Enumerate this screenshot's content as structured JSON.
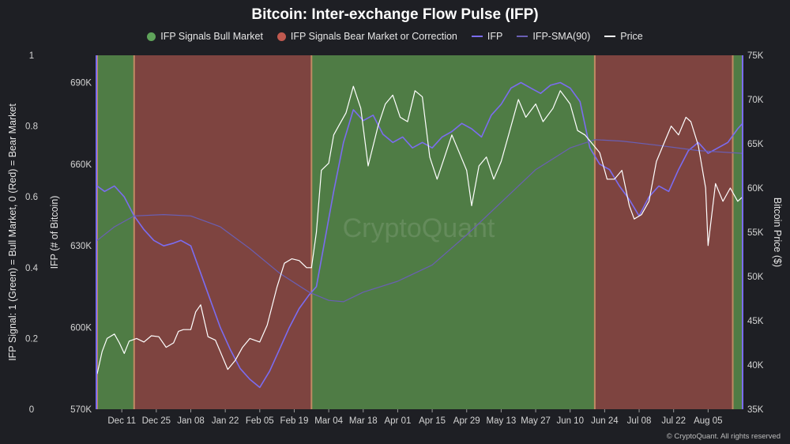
{
  "chart_data": {
    "type": "line",
    "title": "Bitcoin: Inter-exchange Flow Pulse (IFP)",
    "watermark": "CryptoQuant",
    "copyright": "© CryptoQuant. All rights reserved",
    "legend_position": "top",
    "grid": false,
    "legend": [
      {
        "label": "IFP Signals Bull Market",
        "kind": "dot",
        "color": "#5fa35a"
      },
      {
        "label": "IFP Signals Bear Market or Correction",
        "kind": "dot",
        "color": "#c0594f"
      },
      {
        "label": "IFP",
        "kind": "line",
        "color": "#7b6cf0"
      },
      {
        "label": "IFP-SMA(90)",
        "kind": "line",
        "color": "#6a5fb4"
      },
      {
        "label": "Price",
        "kind": "line",
        "color": "#ffffff"
      }
    ],
    "axes": {
      "signal": {
        "label": "IFP Signal: 1 (Green) = Bull Market, 0 (Red) = Bear Market",
        "ticks": [
          "0",
          "0.2",
          "0.4",
          "0.6",
          "0.8",
          "1"
        ],
        "ylim": [
          0,
          1
        ]
      },
      "ifp": {
        "label": "IFP (# of Bitcoin)",
        "ticks": [
          "570K",
          "600K",
          "630K",
          "660K",
          "690K"
        ],
        "ylim": [
          570000,
          700000
        ]
      },
      "price": {
        "label": "Bitcoin Price ($)",
        "ticks": [
          "35K",
          "40K",
          "45K",
          "50K",
          "55K",
          "60K",
          "65K",
          "70K",
          "75K"
        ],
        "ylim": [
          35000,
          75000
        ]
      },
      "x_ticks": [
        "Dec 11",
        "Dec 25",
        "Jan 08",
        "Jan 22",
        "Feb 05",
        "Feb 19",
        "Mar 04",
        "Mar 18",
        "Apr 01",
        "Apr 15",
        "Apr 29",
        "May 13",
        "May 27",
        "Jun 10",
        "Jun 24",
        "Jul 08",
        "Jul 22",
        "Aug 05"
      ]
    },
    "x_start": "2023-12-01",
    "x_end": "2024-08-19",
    "signal_regions": [
      {
        "start": "2023-12-01",
        "end": "2023-12-16",
        "signal": 1
      },
      {
        "start": "2023-12-16",
        "end": "2024-02-26",
        "signal": 0
      },
      {
        "start": "2024-02-26",
        "end": "2024-06-20",
        "signal": 1
      },
      {
        "start": "2024-06-20",
        "end": "2024-08-15",
        "signal": 0
      },
      {
        "start": "2024-08-15",
        "end": "2024-08-19",
        "signal": 1
      }
    ],
    "series": [
      {
        "name": "IFP",
        "axis": "ifp",
        "color": "#7b6cf0",
        "width": 1.6,
        "x": [
          "2023-12-01",
          "2023-12-04",
          "2023-12-08",
          "2023-12-12",
          "2023-12-16",
          "2023-12-20",
          "2023-12-24",
          "2023-12-28",
          "2024-01-01",
          "2024-01-04",
          "2024-01-08",
          "2024-01-12",
          "2024-01-16",
          "2024-01-20",
          "2024-01-24",
          "2024-01-28",
          "2024-02-01",
          "2024-02-05",
          "2024-02-09",
          "2024-02-13",
          "2024-02-17",
          "2024-02-21",
          "2024-02-25",
          "2024-02-28",
          "2024-03-02",
          "2024-03-06",
          "2024-03-10",
          "2024-03-14",
          "2024-03-18",
          "2024-03-22",
          "2024-03-26",
          "2024-03-30",
          "2024-04-03",
          "2024-04-07",
          "2024-04-11",
          "2024-04-15",
          "2024-04-19",
          "2024-04-23",
          "2024-04-27",
          "2024-05-01",
          "2024-05-05",
          "2024-05-09",
          "2024-05-13",
          "2024-05-17",
          "2024-05-21",
          "2024-05-25",
          "2024-05-29",
          "2024-06-02",
          "2024-06-06",
          "2024-06-10",
          "2024-06-14",
          "2024-06-18",
          "2024-06-22",
          "2024-06-26",
          "2024-06-30",
          "2024-07-04",
          "2024-07-08",
          "2024-07-12",
          "2024-07-16",
          "2024-07-20",
          "2024-07-24",
          "2024-07-28",
          "2024-08-01",
          "2024-08-05",
          "2024-08-09",
          "2024-08-13",
          "2024-08-17",
          "2024-08-19"
        ],
        "y": [
          652000,
          650000,
          652000,
          648000,
          641000,
          636000,
          632000,
          630000,
          631000,
          632000,
          630000,
          620000,
          610000,
          600000,
          592000,
          585000,
          581000,
          578000,
          584000,
          592000,
          600000,
          607000,
          612000,
          615000,
          630000,
          650000,
          668000,
          680000,
          676000,
          678000,
          671000,
          668000,
          670000,
          666000,
          668000,
          666000,
          670000,
          672000,
          675000,
          673000,
          670000,
          678000,
          682000,
          688000,
          690000,
          688000,
          686000,
          689000,
          690000,
          688000,
          683000,
          666000,
          660000,
          658000,
          652000,
          647000,
          641000,
          648000,
          652000,
          650000,
          658000,
          665000,
          668000,
          664000,
          666000,
          668000,
          673000,
          675000
        ]
      },
      {
        "name": "IFP-SMA(90)",
        "axis": "ifp",
        "color": "#6a5fb4",
        "width": 1.2,
        "x": [
          "2023-12-01",
          "2023-12-08",
          "2023-12-16",
          "2023-12-28",
          "2024-01-08",
          "2024-01-20",
          "2024-02-01",
          "2024-02-13",
          "2024-02-25",
          "2024-03-04",
          "2024-03-10",
          "2024-03-18",
          "2024-04-01",
          "2024-04-15",
          "2024-04-29",
          "2024-05-13",
          "2024-05-27",
          "2024-06-10",
          "2024-06-20",
          "2024-07-01",
          "2024-07-15",
          "2024-08-01",
          "2024-08-19"
        ],
        "y": [
          632000,
          637000,
          641000,
          641500,
          641000,
          637000,
          629000,
          620000,
          613000,
          610000,
          609500,
          613000,
          617000,
          623000,
          634000,
          646000,
          658000,
          666000,
          669000,
          668500,
          667000,
          665000,
          664000
        ]
      },
      {
        "name": "Price",
        "axis": "price",
        "color": "#ffffff",
        "width": 1.2,
        "x": [
          "2023-12-01",
          "2023-12-03",
          "2023-12-05",
          "2023-12-08",
          "2023-12-10",
          "2023-12-12",
          "2023-12-14",
          "2023-12-17",
          "2023-12-20",
          "2023-12-23",
          "2023-12-26",
          "2023-12-29",
          "2024-01-01",
          "2024-01-03",
          "2024-01-05",
          "2024-01-08",
          "2024-01-10",
          "2024-01-12",
          "2024-01-15",
          "2024-01-18",
          "2024-01-20",
          "2024-01-23",
          "2024-01-26",
          "2024-01-29",
          "2024-02-01",
          "2024-02-05",
          "2024-02-08",
          "2024-02-12",
          "2024-02-15",
          "2024-02-18",
          "2024-02-21",
          "2024-02-24",
          "2024-02-26",
          "2024-02-28",
          "2024-03-01",
          "2024-03-04",
          "2024-03-06",
          "2024-03-08",
          "2024-03-11",
          "2024-03-14",
          "2024-03-17",
          "2024-03-20",
          "2024-03-24",
          "2024-03-27",
          "2024-03-30",
          "2024-04-02",
          "2024-04-05",
          "2024-04-08",
          "2024-04-11",
          "2024-04-14",
          "2024-04-17",
          "2024-04-20",
          "2024-04-23",
          "2024-04-26",
          "2024-04-29",
          "2024-05-01",
          "2024-05-04",
          "2024-05-07",
          "2024-05-10",
          "2024-05-13",
          "2024-05-16",
          "2024-05-20",
          "2024-05-23",
          "2024-05-27",
          "2024-05-30",
          "2024-06-03",
          "2024-06-06",
          "2024-06-10",
          "2024-06-13",
          "2024-06-16",
          "2024-06-19",
          "2024-06-22",
          "2024-06-25",
          "2024-06-28",
          "2024-07-01",
          "2024-07-04",
          "2024-07-06",
          "2024-07-09",
          "2024-07-12",
          "2024-07-15",
          "2024-07-18",
          "2024-07-21",
          "2024-07-24",
          "2024-07-27",
          "2024-07-29",
          "2024-08-01",
          "2024-08-04",
          "2024-08-05",
          "2024-08-08",
          "2024-08-11",
          "2024-08-14",
          "2024-08-17",
          "2024-08-19"
        ],
        "y": [
          39000,
          41500,
          43000,
          43500,
          42500,
          41300,
          42700,
          43000,
          42600,
          43300,
          43200,
          42000,
          42500,
          43800,
          44000,
          44000,
          46000,
          46800,
          43200,
          42800,
          41500,
          39500,
          40500,
          42000,
          43000,
          42600,
          44500,
          48800,
          51500,
          52000,
          51800,
          51000,
          51000,
          55000,
          62000,
          62800,
          66000,
          67000,
          68500,
          71500,
          69000,
          62500,
          67000,
          69500,
          70500,
          68000,
          67500,
          71000,
          70300,
          63500,
          61000,
          63500,
          66000,
          64000,
          62000,
          58000,
          62500,
          63500,
          61000,
          63000,
          66000,
          70000,
          68000,
          69500,
          67500,
          69000,
          71000,
          69500,
          66500,
          66000,
          65000,
          64000,
          61000,
          61000,
          62000,
          58000,
          56500,
          57000,
          58500,
          63000,
          65000,
          67000,
          66000,
          68000,
          67500,
          64800,
          60000,
          53500,
          60500,
          58500,
          60000,
          58500,
          59000
        ]
      }
    ]
  }
}
